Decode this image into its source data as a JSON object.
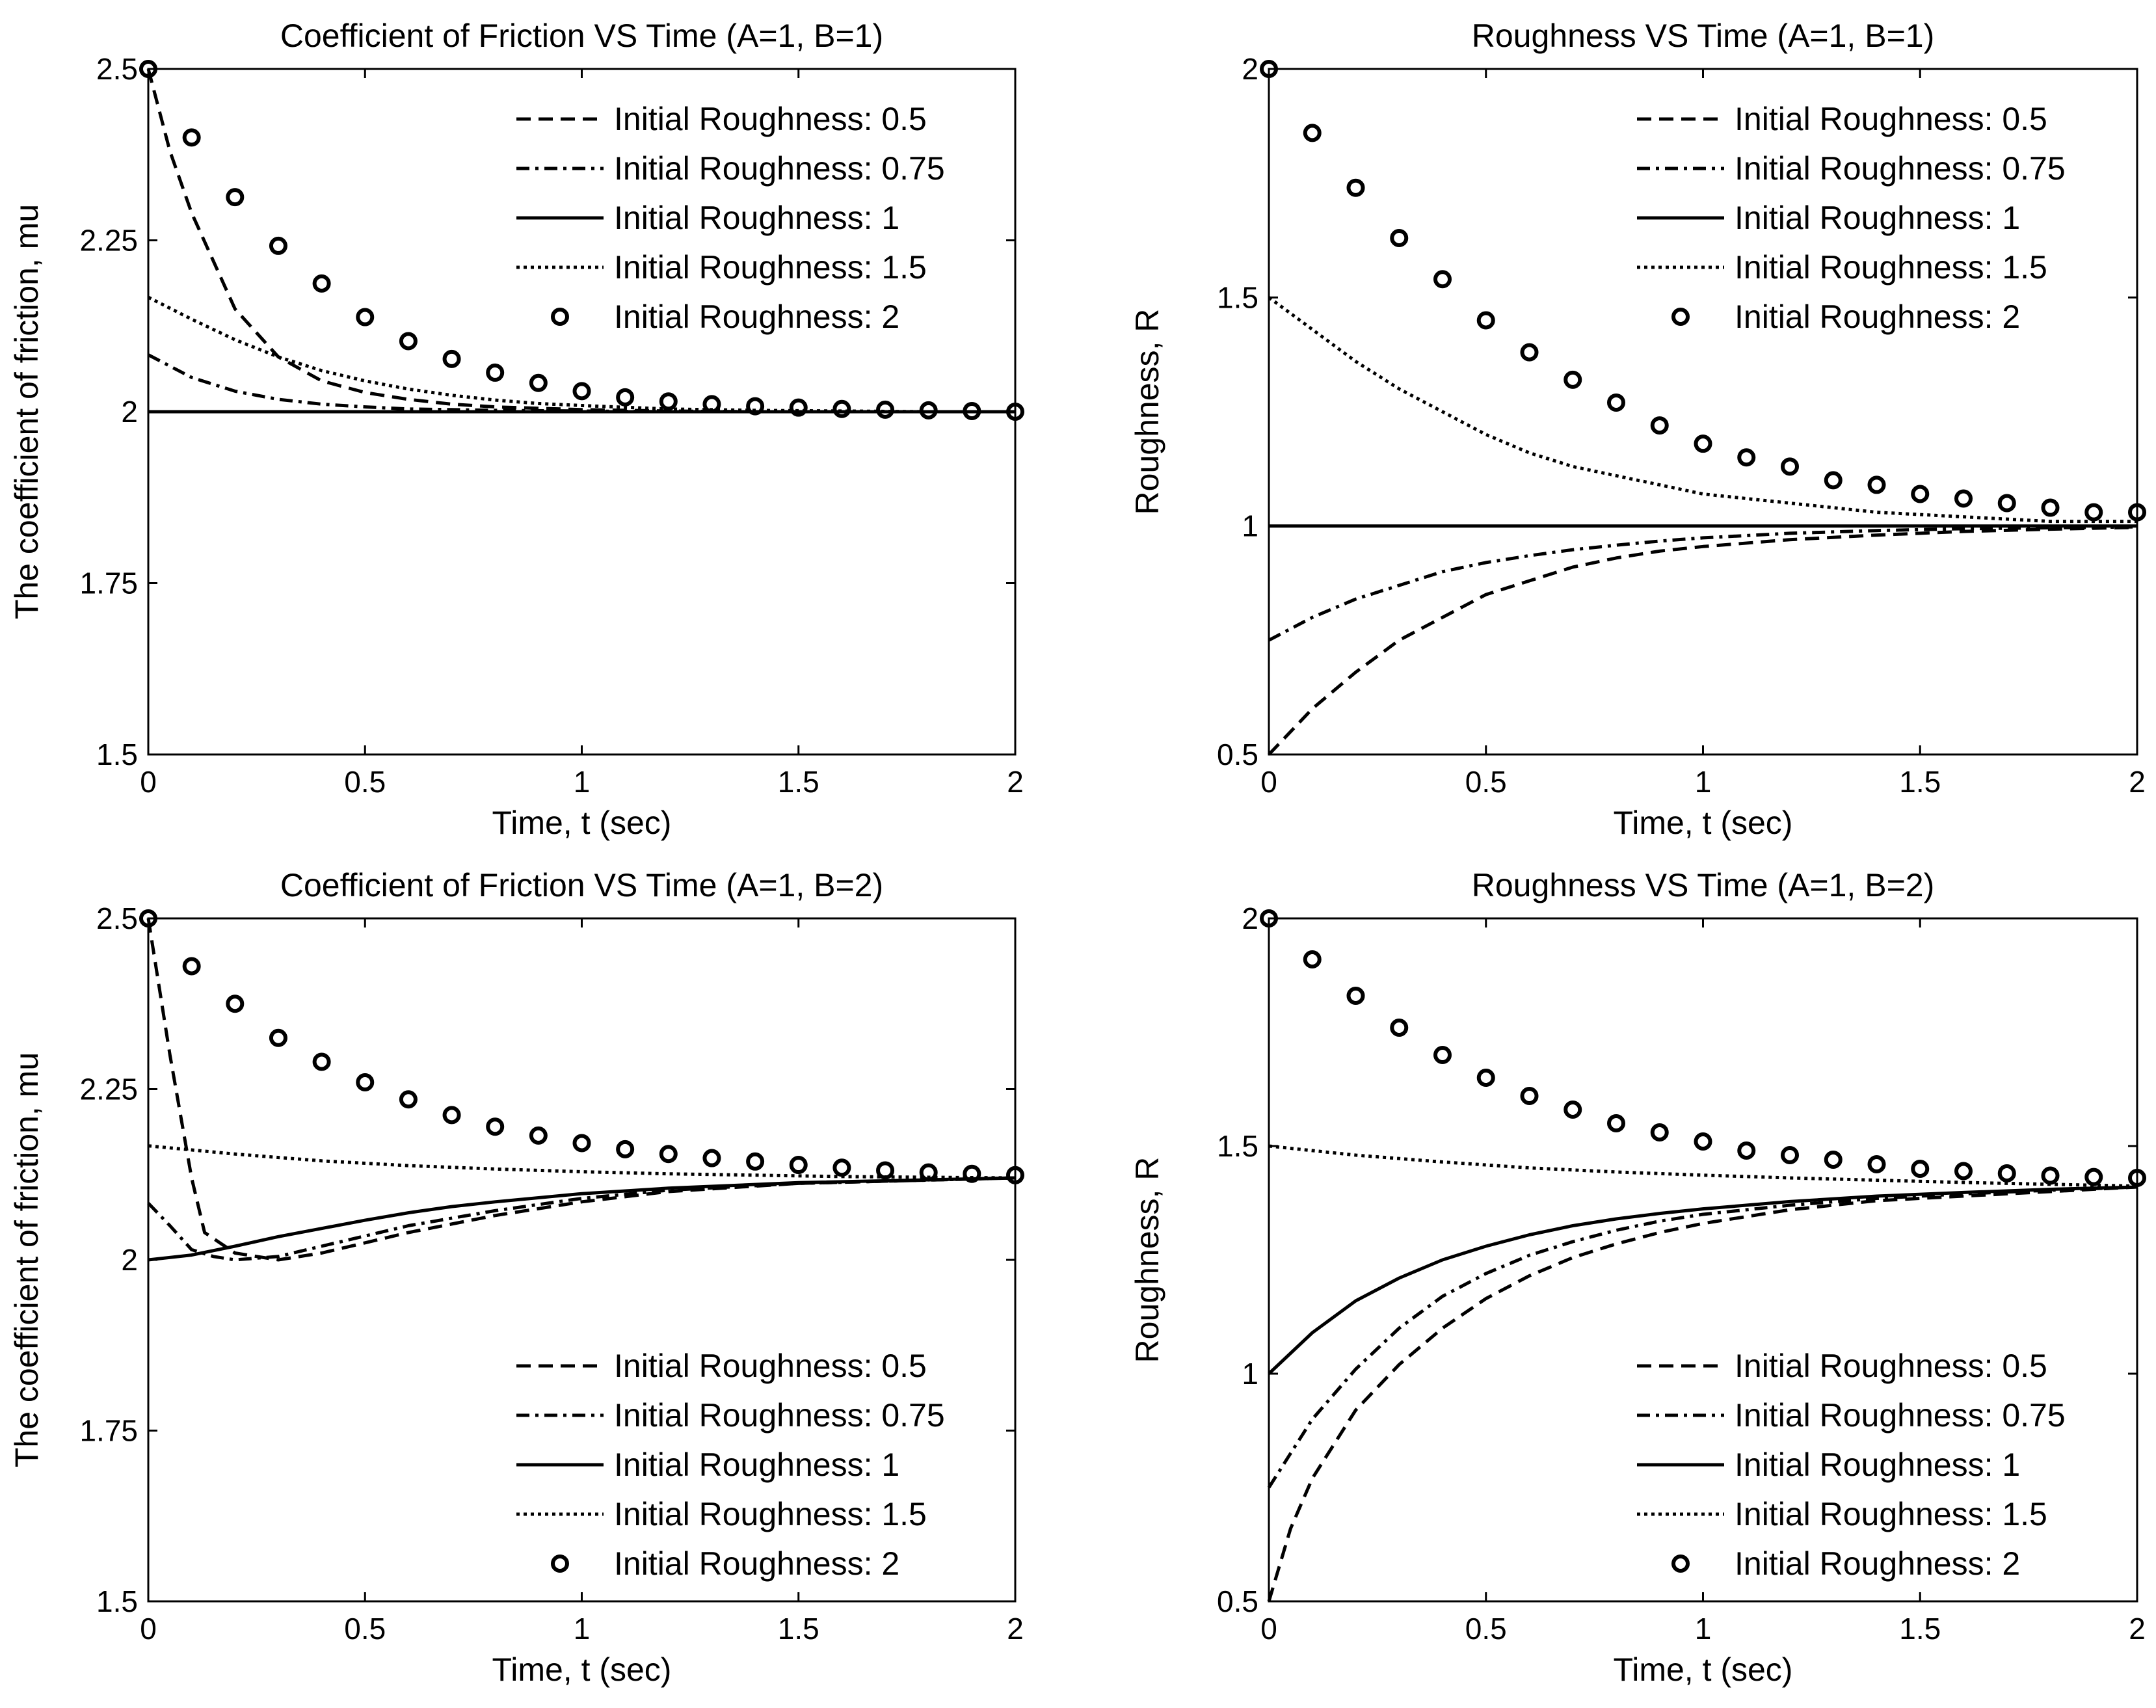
{
  "chart_data": [
    {
      "type": "line",
      "title": "Coefficient of Friction VS Time  (A=1, B=1)",
      "xlabel": "Time, t (sec)",
      "ylabel": "The coefficient of friction, mu",
      "xlim": [
        0,
        2
      ],
      "ylim": [
        1.5,
        2.5
      ],
      "xticks": [
        "0",
        "0.5",
        "1",
        "1.5",
        "2"
      ],
      "yticks": [
        "1.5",
        "1.75",
        "2",
        "2.25",
        "2.5"
      ],
      "legend_position": "top-right",
      "series": [
        {
          "name": "Initial Roughness: 0.5",
          "style": "dashed",
          "x": [
            0,
            0.05,
            0.1,
            0.2,
            0.3,
            0.4,
            0.5,
            0.6,
            0.7,
            0.8,
            0.9,
            1.0,
            1.2,
            1.4,
            1.6,
            1.8,
            2.0
          ],
          "values": [
            2.5,
            2.38,
            2.29,
            2.15,
            2.08,
            2.045,
            2.028,
            2.018,
            2.011,
            2.007,
            2.005,
            2.003,
            2.001,
            2.0,
            2.0,
            2.0,
            2.0
          ]
        },
        {
          "name": "Initial Roughness: 0.75",
          "style": "dashdot",
          "x": [
            0,
            0.1,
            0.2,
            0.3,
            0.4,
            0.5,
            0.6,
            0.7,
            0.8,
            1.0,
            1.2,
            1.5,
            2.0
          ],
          "values": [
            2.083,
            2.05,
            2.03,
            2.018,
            2.011,
            2.007,
            2.004,
            2.003,
            2.002,
            2.001,
            2.0,
            2.0,
            2.0
          ]
        },
        {
          "name": "Initial Roughness: 1",
          "style": "solid",
          "x": [
            0,
            2
          ],
          "values": [
            2.0,
            2.0
          ]
        },
        {
          "name": "Initial Roughness: 1.5",
          "style": "dotted",
          "x": [
            0,
            0.1,
            0.2,
            0.3,
            0.4,
            0.5,
            0.6,
            0.7,
            0.8,
            0.9,
            1.0,
            1.2,
            1.4,
            1.6,
            1.8,
            2.0
          ],
          "values": [
            2.167,
            2.135,
            2.105,
            2.08,
            2.06,
            2.045,
            2.033,
            2.024,
            2.017,
            2.012,
            2.009,
            2.004,
            2.002,
            2.001,
            2.0,
            2.0
          ]
        },
        {
          "name": "Initial Roughness: 2",
          "style": "circles",
          "x": [
            0,
            0.1,
            0.2,
            0.3,
            0.4,
            0.5,
            0.6,
            0.7,
            0.8,
            0.9,
            1.0,
            1.1,
            1.2,
            1.3,
            1.4,
            1.5,
            1.6,
            1.7,
            1.8,
            1.9,
            2.0
          ],
          "values": [
            2.5,
            2.4,
            2.313,
            2.242,
            2.187,
            2.138,
            2.103,
            2.077,
            2.057,
            2.042,
            2.03,
            2.021,
            2.015,
            2.011,
            2.008,
            2.006,
            2.004,
            2.003,
            2.002,
            2.001,
            2.0
          ]
        }
      ]
    },
    {
      "type": "line",
      "title": "Roughness VS Time  (A=1, B=1)",
      "xlabel": "Time, t (sec)",
      "ylabel": "Roughness, R",
      "xlim": [
        0,
        2
      ],
      "ylim": [
        0.5,
        2
      ],
      "xticks": [
        "0",
        "0.5",
        "1",
        "1.5",
        "2"
      ],
      "yticks": [
        "0.5",
        "1",
        "1.5",
        "2"
      ],
      "legend_position": "top-right",
      "series": [
        {
          "name": "Initial Roughness: 0.5",
          "style": "dashed",
          "x": [
            0,
            0.05,
            0.1,
            0.2,
            0.3,
            0.4,
            0.5,
            0.6,
            0.7,
            0.8,
            0.9,
            1.0,
            1.2,
            1.4,
            1.6,
            1.8,
            2.0
          ],
          "values": [
            0.5,
            0.55,
            0.6,
            0.68,
            0.75,
            0.8,
            0.85,
            0.88,
            0.91,
            0.93,
            0.945,
            0.955,
            0.97,
            0.98,
            0.988,
            0.993,
            0.997
          ]
        },
        {
          "name": "Initial Roughness: 0.75",
          "style": "dashdot",
          "x": [
            0,
            0.1,
            0.2,
            0.3,
            0.4,
            0.5,
            0.6,
            0.7,
            0.8,
            0.9,
            1.0,
            1.2,
            1.4,
            1.6,
            1.8,
            2.0
          ],
          "values": [
            0.75,
            0.8,
            0.84,
            0.87,
            0.9,
            0.92,
            0.935,
            0.948,
            0.958,
            0.967,
            0.974,
            0.984,
            0.99,
            0.994,
            0.996,
            0.998
          ]
        },
        {
          "name": "Initial Roughness: 1",
          "style": "solid",
          "x": [
            0,
            2
          ],
          "values": [
            1.0,
            1.0
          ]
        },
        {
          "name": "Initial Roughness: 1.5",
          "style": "dotted",
          "x": [
            0,
            0.1,
            0.2,
            0.3,
            0.4,
            0.5,
            0.6,
            0.7,
            0.8,
            0.9,
            1.0,
            1.2,
            1.4,
            1.6,
            1.8,
            2.0
          ],
          "values": [
            1.5,
            1.43,
            1.36,
            1.3,
            1.25,
            1.2,
            1.16,
            1.13,
            1.11,
            1.09,
            1.07,
            1.05,
            1.03,
            1.02,
            1.01,
            1.01
          ]
        },
        {
          "name": "Initial Roughness: 2",
          "style": "circles",
          "x": [
            0,
            0.1,
            0.2,
            0.3,
            0.4,
            0.5,
            0.6,
            0.7,
            0.8,
            0.9,
            1.0,
            1.1,
            1.2,
            1.3,
            1.4,
            1.5,
            1.6,
            1.7,
            1.8,
            1.9,
            2.0
          ],
          "values": [
            2.0,
            1.86,
            1.74,
            1.63,
            1.54,
            1.45,
            1.38,
            1.32,
            1.27,
            1.22,
            1.18,
            1.15,
            1.13,
            1.1,
            1.09,
            1.07,
            1.06,
            1.05,
            1.04,
            1.03,
            1.03
          ]
        }
      ]
    },
    {
      "type": "line",
      "title": "Coefficient of Friction VS Time  (A=1, B=2)",
      "xlabel": "Time, t (sec)",
      "ylabel": "The coefficient of friction, mu",
      "xlim": [
        0,
        2
      ],
      "ylim": [
        1.5,
        2.5
      ],
      "xticks": [
        "0",
        "0.5",
        "1",
        "1.5",
        "2"
      ],
      "yticks": [
        "1.5",
        "1.75",
        "2",
        "2.25",
        "2.5"
      ],
      "legend_position": "bottom-right",
      "series": [
        {
          "name": "Initial Roughness: 0.5",
          "style": "dashed",
          "x": [
            0,
            0.05,
            0.1,
            0.13,
            0.2,
            0.3,
            0.4,
            0.5,
            0.6,
            0.8,
            1.0,
            1.2,
            1.5,
            2.0
          ],
          "values": [
            2.5,
            2.3,
            2.12,
            2.04,
            2.01,
            2.0,
            2.01,
            2.025,
            2.04,
            2.065,
            2.085,
            2.1,
            2.112,
            2.12
          ]
        },
        {
          "name": "Initial Roughness: 0.75",
          "style": "dashdot",
          "x": [
            0,
            0.05,
            0.1,
            0.15,
            0.2,
            0.3,
            0.4,
            0.5,
            0.6,
            0.8,
            1.0,
            1.2,
            1.5,
            2.0
          ],
          "values": [
            2.083,
            2.05,
            2.015,
            2.005,
            2.0,
            2.005,
            2.02,
            2.035,
            2.05,
            2.072,
            2.09,
            2.102,
            2.112,
            2.12
          ]
        },
        {
          "name": "Initial Roughness: 1",
          "style": "solid",
          "x": [
            0,
            0.1,
            0.2,
            0.3,
            0.4,
            0.5,
            0.6,
            0.7,
            0.8,
            1.0,
            1.2,
            1.5,
            2.0
          ],
          "values": [
            2.0,
            2.007,
            2.02,
            2.034,
            2.046,
            2.058,
            2.069,
            2.078,
            2.085,
            2.097,
            2.105,
            2.113,
            2.12
          ]
        },
        {
          "name": "Initial Roughness: 1.5",
          "style": "dotted",
          "x": [
            0,
            0.2,
            0.4,
            0.6,
            0.8,
            1.0,
            1.2,
            1.4,
            1.6,
            1.8,
            2.0
          ],
          "values": [
            2.167,
            2.155,
            2.145,
            2.138,
            2.133,
            2.129,
            2.126,
            2.124,
            2.122,
            2.121,
            2.12
          ]
        },
        {
          "name": "Initial Roughness: 2",
          "style": "circles",
          "x": [
            0,
            0.1,
            0.2,
            0.3,
            0.4,
            0.5,
            0.6,
            0.7,
            0.8,
            0.9,
            1.0,
            1.1,
            1.2,
            1.3,
            1.4,
            1.5,
            1.6,
            1.7,
            1.8,
            1.9,
            2.0
          ],
          "values": [
            2.5,
            2.43,
            2.375,
            2.325,
            2.29,
            2.26,
            2.235,
            2.212,
            2.195,
            2.182,
            2.171,
            2.162,
            2.155,
            2.149,
            2.144,
            2.139,
            2.135,
            2.131,
            2.128,
            2.126,
            2.124
          ]
        }
      ]
    },
    {
      "type": "line",
      "title": "Roughness VS Time  (A=1, B=2)",
      "xlabel": "Time, t (sec)",
      "ylabel": "Roughness, R",
      "xlim": [
        0,
        2
      ],
      "ylim": [
        0.5,
        2
      ],
      "xticks": [
        "0",
        "0.5",
        "1",
        "1.5",
        "2"
      ],
      "yticks": [
        "0.5",
        "1",
        "1.5",
        "2"
      ],
      "legend_position": "bottom-right",
      "series": [
        {
          "name": "Initial Roughness: 0.5",
          "style": "dashed",
          "x": [
            0,
            0.05,
            0.1,
            0.2,
            0.3,
            0.4,
            0.5,
            0.6,
            0.7,
            0.8,
            0.9,
            1.0,
            1.2,
            1.4,
            1.6,
            1.8,
            2.0
          ],
          "values": [
            0.5,
            0.66,
            0.77,
            0.92,
            1.02,
            1.1,
            1.165,
            1.215,
            1.255,
            1.285,
            1.31,
            1.33,
            1.36,
            1.38,
            1.39,
            1.4,
            1.41
          ]
        },
        {
          "name": "Initial Roughness: 0.75",
          "style": "dashdot",
          "x": [
            0,
            0.1,
            0.2,
            0.3,
            0.4,
            0.5,
            0.6,
            0.7,
            0.8,
            0.9,
            1.0,
            1.2,
            1.4,
            1.6,
            1.8,
            2.0
          ],
          "values": [
            0.75,
            0.9,
            1.01,
            1.1,
            1.17,
            1.22,
            1.26,
            1.29,
            1.315,
            1.335,
            1.35,
            1.37,
            1.385,
            1.395,
            1.403,
            1.41
          ]
        },
        {
          "name": "Initial Roughness: 1",
          "style": "solid",
          "x": [
            0,
            0.1,
            0.2,
            0.3,
            0.4,
            0.5,
            0.6,
            0.7,
            0.8,
            0.9,
            1.0,
            1.2,
            1.4,
            1.6,
            1.8,
            2.0
          ],
          "values": [
            1.0,
            1.09,
            1.16,
            1.21,
            1.25,
            1.28,
            1.305,
            1.325,
            1.34,
            1.352,
            1.362,
            1.378,
            1.39,
            1.398,
            1.405,
            1.41
          ]
        },
        {
          "name": "Initial Roughness: 1.5",
          "style": "dotted",
          "x": [
            0,
            0.2,
            0.4,
            0.6,
            0.8,
            1.0,
            1.2,
            1.4,
            1.6,
            1.8,
            2.0
          ],
          "values": [
            1.5,
            1.48,
            1.465,
            1.452,
            1.443,
            1.436,
            1.43,
            1.425,
            1.42,
            1.416,
            1.412
          ]
        },
        {
          "name": "Initial Roughness: 2",
          "style": "circles",
          "x": [
            0,
            0.1,
            0.2,
            0.3,
            0.4,
            0.5,
            0.6,
            0.7,
            0.8,
            0.9,
            1.0,
            1.1,
            1.2,
            1.3,
            1.4,
            1.5,
            1.6,
            1.7,
            1.8,
            1.9,
            2.0
          ],
          "values": [
            2.0,
            1.91,
            1.83,
            1.76,
            1.7,
            1.65,
            1.61,
            1.58,
            1.55,
            1.53,
            1.51,
            1.49,
            1.48,
            1.47,
            1.46,
            1.45,
            1.445,
            1.44,
            1.435,
            1.432,
            1.43
          ]
        }
      ]
    }
  ]
}
